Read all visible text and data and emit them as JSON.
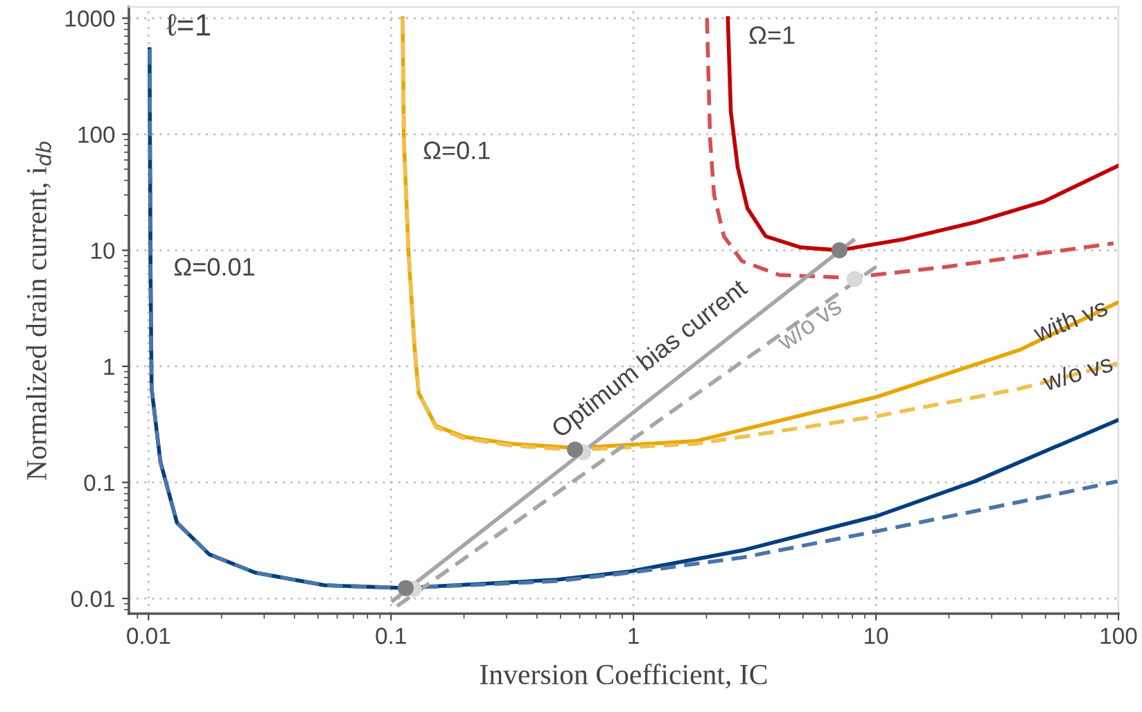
{
  "chart_data": {
    "type": "line",
    "xlabel": "Inversion Coefficient, IC",
    "ylabel": "Normalized drain current, i$_{db}$",
    "log": "xy",
    "grid": true,
    "legend": false,
    "xlim": [
      0.0083,
      100
    ],
    "ylim": [
      0.0074,
      1250
    ],
    "xticks": [
      0.01,
      0.1,
      1,
      10,
      100
    ],
    "yticks": [
      0.01,
      0.1,
      1,
      10,
      100,
      1000
    ],
    "series": [
      {
        "color": "#003f7f",
        "line_style": "solid",
        "x": [
          0.0101,
          0.0102,
          0.0103,
          0.0112,
          0.0131,
          0.0178,
          0.0275,
          0.0532,
          0.113,
          0.483,
          0.97,
          2.8,
          10.1,
          25.5,
          99
        ],
        "values": [
          540,
          5.8,
          0.64,
          0.15,
          0.045,
          0.024,
          0.0167,
          0.013,
          0.0123,
          0.0145,
          0.0171,
          0.0259,
          0.0514,
          0.102,
          0.343
        ]
      },
      {
        "color": "#4a75a8",
        "line_style": "dashed",
        "x": [
          0.0101,
          0.0102,
          0.0103,
          0.0112,
          0.0131,
          0.0178,
          0.0275,
          0.0532,
          0.113,
          0.483,
          0.97,
          2.8,
          10.1,
          39.3,
          99
        ],
        "values": [
          540,
          5.8,
          0.64,
          0.15,
          0.045,
          0.024,
          0.0167,
          0.013,
          0.0123,
          0.0141,
          0.0167,
          0.0225,
          0.038,
          0.068,
          0.102
        ]
      },
      {
        "color": "#e8a600",
        "line_style": "solid",
        "x": [
          0.1117,
          0.113,
          0.118,
          0.125,
          0.13,
          0.153,
          0.2,
          0.313,
          0.574,
          1.81,
          10.1,
          39.3,
          99
        ],
        "values": [
          1000,
          90,
          10,
          1.47,
          0.59,
          0.307,
          0.247,
          0.215,
          0.198,
          0.227,
          0.546,
          1.39,
          3.54
        ]
      },
      {
        "color": "#f0c050",
        "line_style": "dashed",
        "x": [
          0.1117,
          0.113,
          0.118,
          0.125,
          0.13,
          0.153,
          0.2,
          0.313,
          0.574,
          1.81,
          10.1,
          39.3,
          99
        ],
        "values": [
          1000,
          90,
          10,
          1.47,
          0.59,
          0.3,
          0.24,
          0.208,
          0.19,
          0.215,
          0.372,
          0.644,
          1.06
        ]
      },
      {
        "color": "#c00000",
        "line_style": "solid",
        "x": [
          2.45,
          2.52,
          2.69,
          2.95,
          3.51,
          4.88,
          7.07,
          13.1,
          25.5,
          49.2,
          100
        ],
        "values": [
          1000,
          157,
          52,
          23,
          13.2,
          10.6,
          10,
          12.5,
          17.4,
          26.3,
          53.7
        ]
      },
      {
        "color": "#d45050",
        "line_style": "dashed",
        "x": [
          2.01,
          2.07,
          2.15,
          2.36,
          2.8,
          4.0,
          7.75,
          19.5,
          95.4
        ],
        "values": [
          1000,
          90,
          30,
          13.2,
          8.07,
          6.13,
          5.8,
          7.2,
          11.5
        ]
      },
      {
        "color": "#a6a6a6",
        "line_style": "solid",
        "x": [
          0.102,
          8.06
        ],
        "values": [
          0.0096,
          12.2
        ]
      },
      {
        "color": "#a6a6a6",
        "line_style": "dashed",
        "x": [
          0.106,
          10
        ],
        "values": [
          0.0086,
          7.2
        ]
      },
      {
        "type": "scatter",
        "marker": "circle",
        "color": "#d9d9d9",
        "x": [
          0.124,
          0.62,
          8.17
        ],
        "values": [
          0.0121,
          0.182,
          5.65
        ]
      },
      {
        "type": "scatter",
        "marker": "circle",
        "color": "#808080",
        "x": [
          0.115,
          0.574,
          7.07
        ],
        "values": [
          0.0123,
          0.192,
          10
        ]
      }
    ],
    "annotations": [
      "ℓ=1",
      "Ω=0.01",
      "Ω=0.1",
      "Ω=1",
      "Optimum bias current",
      "w/o vs",
      {
        "text": "with vs",
        "x": 64,
        "y": 2.41
      },
      {
        "text": "w/o vs",
        "x": 68.5,
        "y": 0.85
      }
    ]
  }
}
